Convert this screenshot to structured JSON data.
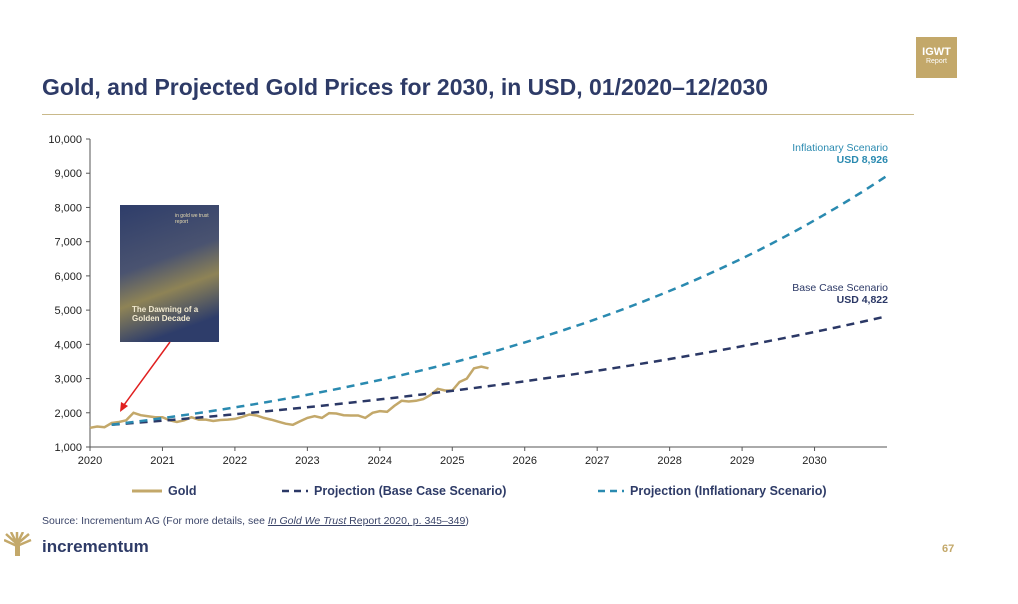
{
  "header": {
    "title": "Gold, and Projected Gold Prices for 2030, in USD, 01/2020–12/2030",
    "badge_line1": "IGWT",
    "badge_line2": "Report"
  },
  "cover": {
    "title": "The Dawning of a Golden Decade",
    "tag": "in gold we trust report"
  },
  "annotations": {
    "inflationary_label": "Inflationary Scenario",
    "inflationary_value": "USD 8,926",
    "base_label": "Base Case Scenario",
    "base_value": "USD 4,822"
  },
  "footer": {
    "source_prefix": "Source: Incrementum AG (For more details, see ",
    "source_link_italic": "In Gold We Trust",
    "source_link_rest": " Report 2020, p. 345–349",
    "source_suffix": ")",
    "brand": "incrementum",
    "page": "67"
  },
  "colors": {
    "gold": "#c3a86a",
    "base": "#2b3866",
    "inflationary": "#2a8ab0",
    "arrow": "#e02020"
  },
  "chart_data": {
    "type": "line",
    "title": "Gold, and Projected Gold Prices for 2030, in USD, 01/2020–12/2030",
    "xlim": [
      2020,
      2031
    ],
    "ylim": [
      1000,
      10000
    ],
    "x_ticks": [
      "2020",
      "2021",
      "2022",
      "2023",
      "2024",
      "2025",
      "2026",
      "2027",
      "2028",
      "2029",
      "2030"
    ],
    "y_ticks": [
      "1,000",
      "2,000",
      "3,000",
      "4,000",
      "5,000",
      "6,000",
      "7,000",
      "8,000",
      "9,000",
      "10,000"
    ],
    "legend": [
      "Gold",
      "Projection (Base Case Scenario)",
      "Projection (Inflationary Scenario)"
    ],
    "legend_position": "bottom",
    "series": [
      {
        "name": "Gold",
        "style": "solid",
        "x": [
          2020.0,
          2020.1,
          2020.2,
          2020.3,
          2020.4,
          2020.5,
          2020.6,
          2020.7,
          2020.8,
          2020.9,
          2021.0,
          2021.1,
          2021.2,
          2021.3,
          2021.4,
          2021.5,
          2021.6,
          2021.7,
          2021.8,
          2021.9,
          2022.0,
          2022.1,
          2022.2,
          2022.3,
          2022.4,
          2022.5,
          2022.6,
          2022.7,
          2022.8,
          2022.9,
          2023.0,
          2023.1,
          2023.2,
          2023.3,
          2023.4,
          2023.5,
          2023.6,
          2023.7,
          2023.8,
          2023.9,
          2024.0,
          2024.1,
          2024.2,
          2024.3,
          2024.4,
          2024.5,
          2024.6,
          2024.7,
          2024.8,
          2024.9,
          2025.0,
          2025.1,
          2025.2,
          2025.3,
          2025.4,
          2025.5
        ],
        "y": [
          1560,
          1600,
          1580,
          1700,
          1730,
          1780,
          2000,
          1930,
          1900,
          1870,
          1870,
          1780,
          1730,
          1780,
          1870,
          1800,
          1800,
          1760,
          1790,
          1800,
          1820,
          1880,
          1950,
          1920,
          1850,
          1800,
          1740,
          1680,
          1650,
          1750,
          1850,
          1900,
          1850,
          1990,
          1980,
          1930,
          1920,
          1920,
          1850,
          2000,
          2050,
          2030,
          2200,
          2350,
          2330,
          2350,
          2400,
          2520,
          2700,
          2650,
          2650,
          2900,
          3000,
          3300,
          3350,
          3300
        ]
      },
      {
        "name": "Projection (Base Case Scenario)",
        "style": "dashed",
        "start": [
          2020.3,
          1650
        ],
        "end": [
          2031,
          4822
        ]
      },
      {
        "name": "Projection (Inflationary Scenario)",
        "style": "dashed",
        "start": [
          2020.3,
          1650
        ],
        "end": [
          2031,
          8926
        ]
      }
    ]
  }
}
